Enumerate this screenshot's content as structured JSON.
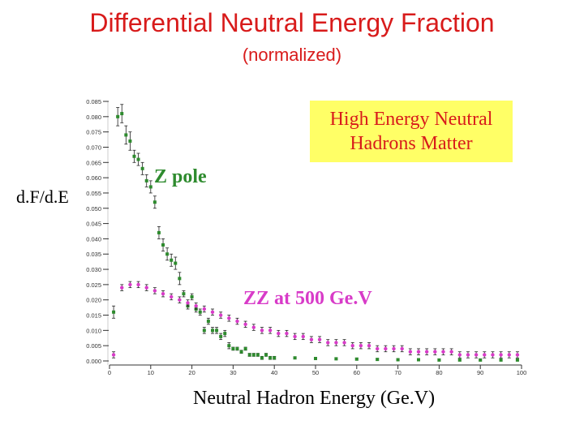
{
  "title": "Differential Neutral Energy Fraction",
  "subtitle": "(normalized)",
  "chart_data": {
    "type": "scatter",
    "xlabel": "Neutral Hadron Energy (Ge.V)",
    "ylabel": "d.F/d.E",
    "xlim": [
      0,
      100
    ],
    "ylim": [
      0,
      0.085
    ],
    "xticks": [
      0,
      10,
      20,
      30,
      40,
      50,
      60,
      70,
      80,
      90,
      100
    ],
    "xtick_labels": [
      "0",
      "10",
      "20",
      "30",
      "40",
      "50",
      "60",
      "70",
      "80",
      "90",
      "100"
    ],
    "yticks": [
      0,
      0.005,
      0.01,
      0.015,
      0.02,
      0.025,
      0.03,
      0.035,
      0.04,
      0.045,
      0.05,
      0.055,
      0.06,
      0.065,
      0.07,
      0.075,
      0.08,
      0.085
    ],
    "ytick_labels": [
      "0.000",
      "0.005",
      "0.010",
      "0.015",
      "0.020",
      "0.025",
      "0.030",
      "0.035",
      "0.040",
      "0.045",
      "0.050",
      "0.055",
      "0.060",
      "0.065",
      "0.070",
      "0.075",
      "0.080",
      "0.085"
    ],
    "annotations": {
      "callout": [
        "High Energy Neutral",
        "Hadrons Matter"
      ],
      "z_pole": "Z pole",
      "zz_500": "ZZ at 500 Ge.V"
    },
    "series": [
      {
        "name": "Z pole",
        "color": "#2e8b2e",
        "marker": "square",
        "x": [
          1,
          2,
          3,
          4,
          5,
          6,
          7,
          8,
          9,
          10,
          11,
          12,
          13,
          14,
          15,
          16,
          17,
          18,
          19,
          20,
          21,
          22,
          23,
          24,
          25,
          26,
          27,
          28,
          29,
          30,
          31,
          32,
          33,
          34,
          35,
          36,
          37,
          38,
          39,
          40,
          45,
          50,
          55,
          60,
          65,
          70,
          75,
          80,
          85,
          90,
          95,
          99
        ],
        "y": [
          0.016,
          0.08,
          0.081,
          0.074,
          0.072,
          0.067,
          0.066,
          0.063,
          0.059,
          0.057,
          0.052,
          0.042,
          0.038,
          0.035,
          0.033,
          0.032,
          0.027,
          0.022,
          0.018,
          0.021,
          0.017,
          0.016,
          0.01,
          0.013,
          0.01,
          0.01,
          0.008,
          0.009,
          0.005,
          0.004,
          0.004,
          0.003,
          0.004,
          0.002,
          0.002,
          0.002,
          0.001,
          0.002,
          0.001,
          0.001,
          0.001,
          0.0008,
          0.0007,
          0.0006,
          0.0005,
          0.0004,
          0.0004,
          0.0003,
          0.0003,
          0.0003,
          0.0003,
          0.0003
        ],
        "err": [
          0.002,
          0.003,
          0.003,
          0.003,
          0.003,
          0.002,
          0.002,
          0.002,
          0.002,
          0.002,
          0.002,
          0.002,
          0.002,
          0.002,
          0.002,
          0.002,
          0.002,
          0.001,
          0.001,
          0.001,
          0.001,
          0.001,
          0.001,
          0.001,
          0.001,
          0.001,
          0.001,
          0.001,
          0.001,
          0.0005,
          0.0005,
          0.0005,
          0.0005,
          0.0005,
          0.0005,
          0.0005,
          0.0005,
          0.0005,
          0.0005,
          0.0005,
          0.0003,
          0.0003,
          0.0003,
          0.0003,
          0.0003,
          0.0003,
          0.0003,
          0.0003,
          0.0003,
          0.0003,
          0.0003,
          0.0003
        ]
      },
      {
        "name": "ZZ at 500 GeV",
        "color": "#d83bc8",
        "marker": "circle",
        "x": [
          1,
          3,
          5,
          7,
          9,
          11,
          13,
          15,
          17,
          19,
          21,
          23,
          25,
          27,
          29,
          31,
          33,
          35,
          37,
          39,
          41,
          43,
          45,
          47,
          49,
          51,
          53,
          55,
          57,
          59,
          61,
          63,
          65,
          67,
          69,
          71,
          73,
          75,
          77,
          79,
          81,
          83,
          85,
          87,
          89,
          91,
          93,
          95,
          97,
          99
        ],
        "y": [
          0.002,
          0.024,
          0.025,
          0.025,
          0.024,
          0.023,
          0.022,
          0.021,
          0.02,
          0.019,
          0.018,
          0.017,
          0.016,
          0.015,
          0.014,
          0.013,
          0.012,
          0.011,
          0.01,
          0.01,
          0.009,
          0.009,
          0.008,
          0.008,
          0.007,
          0.007,
          0.006,
          0.006,
          0.006,
          0.005,
          0.005,
          0.005,
          0.004,
          0.004,
          0.004,
          0.004,
          0.003,
          0.003,
          0.003,
          0.003,
          0.003,
          0.003,
          0.002,
          0.002,
          0.002,
          0.002,
          0.002,
          0.002,
          0.002,
          0.002
        ],
        "err": [
          0.001,
          0.001,
          0.001,
          0.001,
          0.001,
          0.001,
          0.001,
          0.001,
          0.001,
          0.001,
          0.001,
          0.001,
          0.001,
          0.001,
          0.001,
          0.001,
          0.001,
          0.001,
          0.001,
          0.001,
          0.001,
          0.001,
          0.001,
          0.001,
          0.001,
          0.001,
          0.001,
          0.001,
          0.001,
          0.001,
          0.001,
          0.001,
          0.001,
          0.001,
          0.001,
          0.001,
          0.001,
          0.001,
          0.001,
          0.001,
          0.001,
          0.001,
          0.001,
          0.001,
          0.001,
          0.001,
          0.001,
          0.001,
          0.001,
          0.001
        ]
      }
    ]
  }
}
